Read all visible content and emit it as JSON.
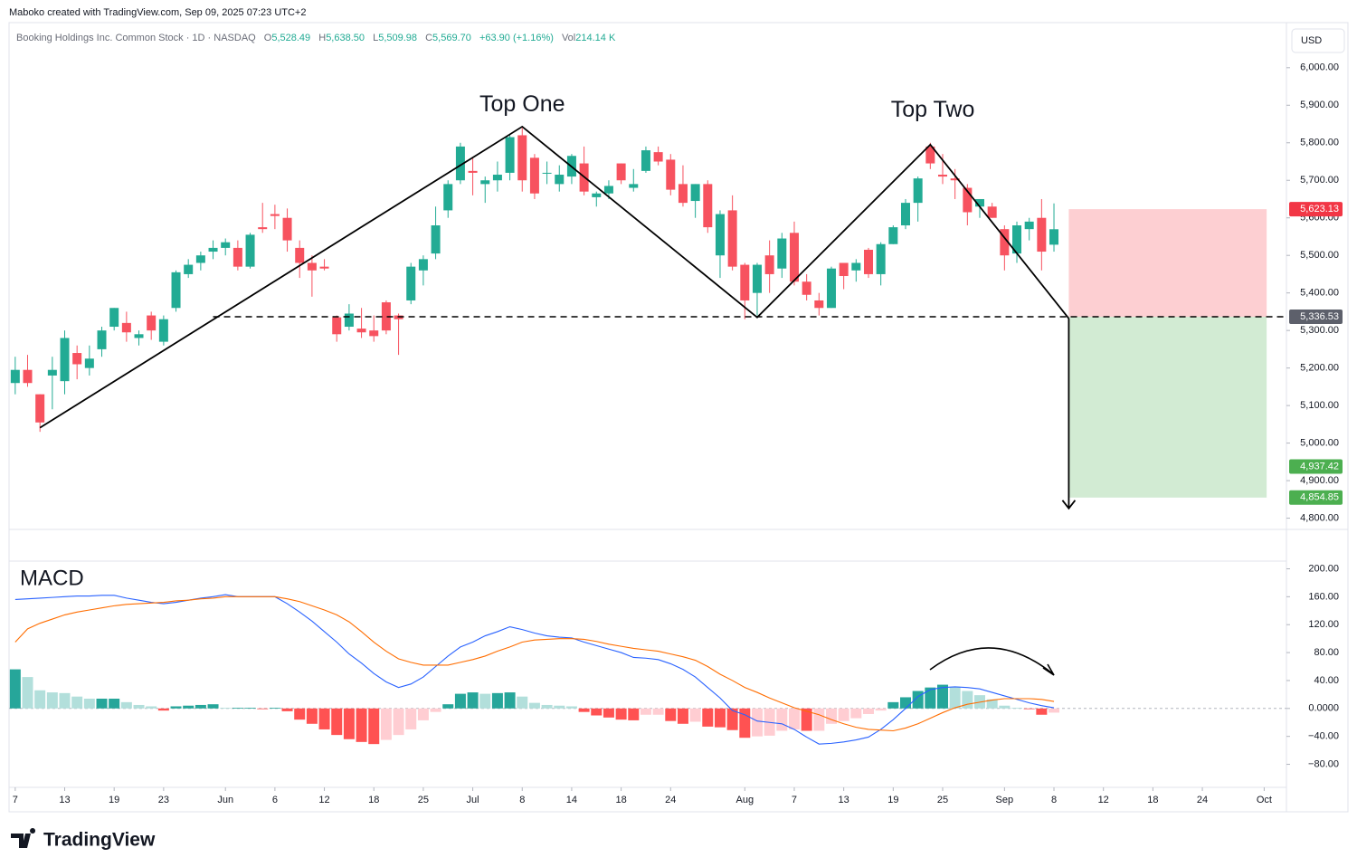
{
  "header": {
    "credit": "Maboko created with TradingView.com, Sep 09, 2025 07:23 UTC+2",
    "symbol": "Booking Holdings Inc. Common Stock · 1D · NASDAQ",
    "quote": [
      {
        "label": "O",
        "value": "5,528.49"
      },
      {
        "label": "H",
        "value": "5,638.50"
      },
      {
        "label": "L",
        "value": "5,509.98"
      },
      {
        "label": "C",
        "value": "5,569.70"
      },
      {
        "value": "+63.90 (+1.16%)"
      },
      {
        "label": "Vol",
        "value": "214.14 K"
      }
    ],
    "currency": "USD",
    "logo": "TradingView"
  },
  "chart_data": [
    {
      "type": "candlestick",
      "up_color": "#22ab94",
      "down_color": "#f7525f",
      "open": [
        5160,
        5195,
        5130,
        5180,
        5165,
        5240,
        5200,
        5250,
        5310,
        5320,
        5280,
        5340,
        5270,
        5360,
        5450,
        5480,
        5510,
        5520,
        5520,
        5470,
        5575,
        5610,
        5600,
        5520,
        5480,
        5470,
        5335,
        5310,
        5305,
        5300,
        5375,
        5340,
        5380,
        5460,
        5505,
        5620,
        5700,
        5725,
        5690,
        5700,
        5720,
        5820,
        5760,
        5720,
        5690,
        5710,
        5745,
        5655,
        5665,
        5745,
        5680,
        5725,
        5775,
        5755,
        5690,
        5645,
        5690,
        5500,
        5620,
        5475,
        5400,
        5500,
        5465,
        5560,
        5430,
        5380,
        5360,
        5480,
        5460,
        5515,
        5450,
        5530,
        5580,
        5640,
        5790,
        5715,
        5705,
        5680,
        5630,
        5630,
        5570,
        5505,
        5570,
        5600,
        5528.49
      ],
      "high": [
        5230,
        5235,
        5130,
        5230,
        5300,
        5260,
        5260,
        5310,
        5360,
        5350,
        5300,
        5350,
        5340,
        5460,
        5490,
        5510,
        5540,
        5545,
        5540,
        5560,
        5640,
        5635,
        5625,
        5540,
        5500,
        5490,
        5340,
        5370,
        5360,
        5340,
        5380,
        5345,
        5480,
        5500,
        5630,
        5700,
        5800,
        5760,
        5710,
        5750,
        5820,
        5840,
        5770,
        5750,
        5740,
        5770,
        5790,
        5670,
        5700,
        5745,
        5730,
        5790,
        5790,
        5770,
        5740,
        5690,
        5700,
        5620,
        5660,
        5480,
        5480,
        5540,
        5560,
        5590,
        5450,
        5400,
        5470,
        5480,
        5490,
        5520,
        5535,
        5580,
        5650,
        5710,
        5800,
        5770,
        5730,
        5690,
        5650,
        5640,
        5580,
        5590,
        5600,
        5650,
        5638.5
      ],
      "low": [
        5130,
        5150,
        5030,
        5090,
        5130,
        5170,
        5180,
        5230,
        5300,
        5270,
        5260,
        5275,
        5260,
        5350,
        5440,
        5460,
        5490,
        5500,
        5460,
        5465,
        5560,
        5570,
        5510,
        5440,
        5390,
        5460,
        5270,
        5300,
        5280,
        5270,
        5290,
        5235,
        5370,
        5420,
        5490,
        5600,
        5690,
        5660,
        5640,
        5670,
        5700,
        5670,
        5650,
        5690,
        5670,
        5690,
        5660,
        5630,
        5650,
        5690,
        5670,
        5720,
        5740,
        5660,
        5630,
        5600,
        5560,
        5440,
        5460,
        5330,
        5340,
        5400,
        5440,
        5420,
        5380,
        5340,
        5360,
        5410,
        5430,
        5440,
        5420,
        5530,
        5570,
        5590,
        5730,
        5690,
        5650,
        5580,
        5600,
        5600,
        5460,
        5480,
        5540,
        5460,
        5509.98
      ],
      "close": [
        5195,
        5160,
        5055,
        5195,
        5280,
        5210,
        5225,
        5300,
        5360,
        5295,
        5290,
        5300,
        5330,
        5455,
        5475,
        5500,
        5520,
        5535,
        5470,
        5555,
        5570,
        5605,
        5540,
        5480,
        5460,
        5465,
        5290,
        5345,
        5295,
        5285,
        5300,
        5330,
        5470,
        5490,
        5580,
        5690,
        5790,
        5720,
        5700,
        5715,
        5815,
        5700,
        5665,
        5720,
        5715,
        5765,
        5670,
        5665,
        5685,
        5700,
        5690,
        5780,
        5750,
        5675,
        5640,
        5690,
        5575,
        5610,
        5470,
        5380,
        5475,
        5450,
        5545,
        5430,
        5395,
        5360,
        5465,
        5445,
        5480,
        5450,
        5530,
        5575,
        5640,
        5705,
        5745,
        5710,
        5700,
        5615,
        5650,
        5600,
        5500,
        5580,
        5590,
        5510,
        5569.7
      ],
      "xlim": [
        -0.5,
        102.8
      ],
      "ylim": [
        4770,
        6108
      ],
      "yticks": [
        {
          "value": 6000,
          "label": "6,000.00"
        },
        {
          "value": 5900,
          "label": "5,900.00"
        },
        {
          "value": 5800,
          "label": "5,800.00"
        },
        {
          "value": 5700,
          "label": "5,700.00"
        },
        {
          "value": 5600,
          "label": "5,600.00"
        },
        {
          "value": 5500,
          "label": "5,500.00"
        },
        {
          "value": 5400,
          "label": "5,400.00"
        },
        {
          "value": 5300,
          "label": "5,300.00"
        },
        {
          "value": 5200,
          "label": "5,200.00"
        },
        {
          "value": 5100,
          "label": "5,100.00"
        },
        {
          "value": 5000,
          "label": "5,000.00"
        },
        {
          "value": 4900,
          "label": "4,900.00"
        },
        {
          "value": 4800,
          "label": "4,800.00"
        }
      ],
      "pattern": {
        "x": [
          2,
          41,
          60,
          74,
          85.2
        ],
        "price": [
          5041,
          5843,
          5335,
          5795,
          5332
        ],
        "arrow_end": 4826
      },
      "annotations": [
        {
          "text": "Top One",
          "x": 41,
          "price": 5900
        },
        {
          "text": "Top Two",
          "x": 74.2,
          "price": 5885
        }
      ],
      "neckline_start": 16,
      "position_x": [
        85.2,
        101.2
      ],
      "price_labels": [
        {
          "value": 5623.13,
          "label": "5,623.13",
          "color": "#f23645"
        },
        {
          "value": 5336.53,
          "label": "5,336.53",
          "color": "#5d606b"
        },
        {
          "value": 4937.42,
          "label": "4,937.42",
          "color": "#4caf50"
        },
        {
          "value": 4854.85,
          "label": "4,854.85",
          "color": "#4caf50"
        }
      ]
    },
    {
      "type": "macd",
      "title": "MACD",
      "xlim": [
        -0.5,
        102.8
      ],
      "ylim": [
        -113,
        211
      ],
      "yticks": [
        {
          "value": 200,
          "label": "200.00"
        },
        {
          "value": 160,
          "label": "160.00"
        },
        {
          "value": 120,
          "label": "120.00"
        },
        {
          "value": 80,
          "label": "80.00"
        },
        {
          "value": 40,
          "label": "40.00"
        },
        {
          "value": 0,
          "label": "0.0000"
        },
        {
          "value": -40,
          "label": "−40.00"
        },
        {
          "value": -80,
          "label": "−80.00"
        }
      ],
      "series": [
        {
          "color": "#2962ff",
          "values": [
            156,
            157,
            158,
            159,
            160,
            161,
            161,
            162,
            162,
            158,
            155,
            152,
            150,
            152,
            155,
            158,
            160,
            163,
            160,
            160,
            160,
            160,
            150,
            138,
            125,
            110,
            95,
            78,
            65,
            50,
            38,
            30,
            35,
            45,
            60,
            75,
            88,
            95,
            104,
            110,
            117,
            113,
            108,
            104,
            102,
            101,
            95,
            90,
            85,
            80,
            73,
            72,
            70,
            64,
            56,
            45,
            30,
            15,
            -3,
            -9,
            -18,
            -20,
            -22,
            -30,
            -41,
            -51,
            -50,
            -48,
            -45,
            -41,
            -30,
            -16,
            0,
            17,
            27,
            30,
            31,
            30,
            28,
            23,
            18,
            13,
            8,
            4,
            1
          ]
        },
        {
          "color": "#ff6d00",
          "values": [
            95,
            114,
            122,
            128,
            134,
            138,
            141,
            144,
            147,
            149,
            150,
            151,
            152,
            154,
            155,
            157,
            158,
            160,
            160,
            160,
            160,
            160,
            157,
            153,
            147,
            141,
            134,
            124,
            110,
            95,
            82,
            71,
            66,
            62,
            62,
            62,
            66,
            70,
            75,
            82,
            88,
            95,
            98,
            99,
            100,
            100,
            99,
            96,
            92,
            89,
            86,
            84,
            82,
            78,
            74,
            69,
            60,
            49,
            40,
            30,
            23,
            15,
            8,
            1,
            -4,
            -9,
            -16,
            -22,
            -27,
            -30,
            -31,
            -32,
            -28,
            -22,
            -14,
            -6,
            1,
            6,
            9,
            12,
            14,
            14,
            14,
            13,
            10
          ]
        }
      ],
      "histogram": [
        56,
        45,
        26,
        23,
        22,
        17,
        14,
        14,
        14,
        9,
        5,
        3,
        -3,
        3,
        4,
        5,
        6,
        1,
        1,
        1,
        -1,
        1,
        -4,
        -16,
        -22,
        -30,
        -38,
        -44,
        -48,
        -51,
        -45,
        -38,
        -30,
        -17,
        -5,
        6,
        21,
        23,
        21,
        22,
        23,
        17,
        8,
        5,
        4,
        3,
        -5,
        -10,
        -13,
        -16,
        -17,
        -9,
        -9,
        -18,
        -22,
        -19,
        -26,
        -27,
        -31,
        -42,
        -40,
        -39,
        -32,
        -30,
        -32,
        -32,
        -22,
        -18,
        -14,
        -8,
        -3,
        9,
        16,
        25,
        30,
        34,
        31,
        25,
        19,
        13,
        4,
        1,
        -1,
        -9,
        -6
      ],
      "histogram_colors": {
        "up_grow": "#26a69a",
        "up_fall": "#b2dfdb",
        "down_grow": "#ff5252",
        "down_fall": "#ffcdd2"
      },
      "xticks": [
        {
          "value": 0,
          "label": "7"
        },
        {
          "value": 4,
          "label": "13"
        },
        {
          "value": 8,
          "label": "19"
        },
        {
          "value": 12,
          "label": "23"
        },
        {
          "value": 17,
          "label": "Jun"
        },
        {
          "value": 21,
          "label": "6"
        },
        {
          "value": 25,
          "label": "12"
        },
        {
          "value": 29,
          "label": "18"
        },
        {
          "value": 33,
          "label": "25"
        },
        {
          "value": 37,
          "label": "Jul"
        },
        {
          "value": 41,
          "label": "8"
        },
        {
          "value": 45,
          "label": "14"
        },
        {
          "value": 49,
          "label": "18"
        },
        {
          "value": 53,
          "label": "24"
        },
        {
          "value": 59,
          "label": "Aug"
        },
        {
          "value": 63,
          "label": "7"
        },
        {
          "value": 67,
          "label": "13"
        },
        {
          "value": 71,
          "label": "19"
        },
        {
          "value": 75,
          "label": "25"
        },
        {
          "value": 80,
          "label": "Sep"
        },
        {
          "value": 84,
          "label": "8"
        },
        {
          "value": 88,
          "label": "12"
        },
        {
          "value": 92,
          "label": "18"
        },
        {
          "value": 96,
          "label": "24"
        },
        {
          "value": 101,
          "label": "Oct"
        }
      ]
    }
  ]
}
